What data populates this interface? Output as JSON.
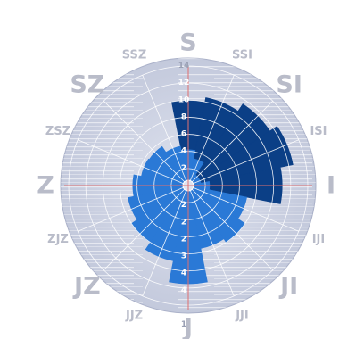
{
  "chart_data": {
    "type": "polar_area",
    "title": "",
    "directions": [
      "S",
      "SSI",
      "SI",
      "ISI",
      "I",
      "IJI",
      "JI",
      "JJI",
      "J",
      "JJZ",
      "JZ",
      "ZJZ",
      "Z",
      "ZSZ",
      "SZ",
      "SSZ"
    ],
    "direction_label_sizes": [
      "large",
      "small",
      "large",
      "small",
      "large",
      "small",
      "large",
      "small",
      "large",
      "small",
      "large",
      "small",
      "large",
      "small",
      "large",
      "small"
    ],
    "radial_max": 14,
    "radial_tick_labels": [
      "14",
      "12",
      "10",
      "8",
      "6",
      "4",
      "2"
    ],
    "bottom_tick_labels": [
      "2",
      "2",
      "2",
      "3",
      "4",
      "4"
    ],
    "bottom_tick_label_bottom": "1",
    "series": [
      {
        "color": "#0b3f86",
        "values": [
          10,
          10.5,
          11.5,
          12.5,
          11,
          0,
          0,
          0,
          0,
          0,
          0,
          0,
          0,
          0,
          0,
          0
        ]
      },
      {
        "color": "#2a79d6",
        "values": [
          4.2,
          3.2,
          1.5,
          1.5,
          2.5,
          7,
          8,
          7.5,
          11.5,
          9,
          8,
          7.2,
          6.5,
          5.6,
          5.5,
          4.7
        ]
      }
    ],
    "colors": {
      "disc": "#cfd4e6",
      "disc_edge": "#a9b0c8",
      "grid": "#ffffff",
      "axis": "#e07070",
      "label": "#b9bcc9"
    }
  }
}
